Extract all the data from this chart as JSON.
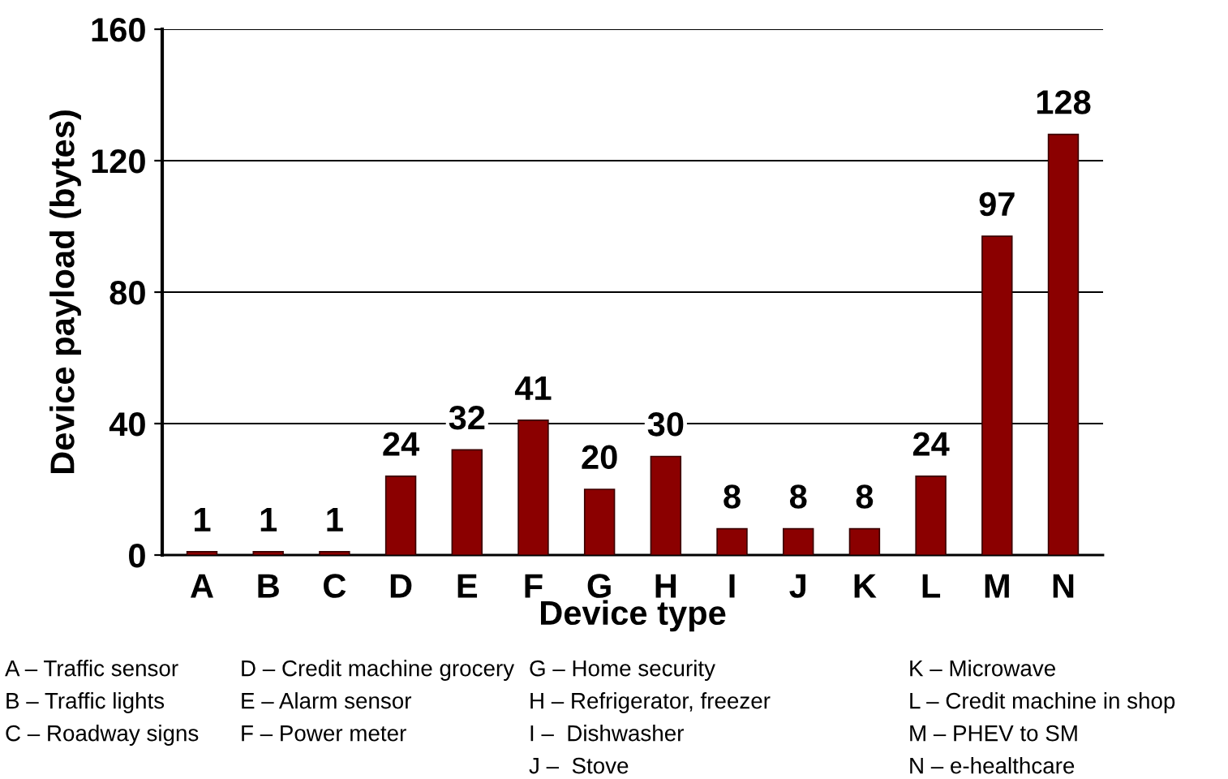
{
  "chart_data": {
    "type": "bar",
    "xlabel": "Device type",
    "ylabel": "Device payload (bytes)",
    "categories": [
      "A",
      "B",
      "C",
      "D",
      "E",
      "F",
      "G",
      "H",
      "I",
      "J",
      "K",
      "L",
      "M",
      "N"
    ],
    "values": [
      1,
      1,
      1,
      24,
      32,
      41,
      20,
      30,
      8,
      8,
      8,
      24,
      97,
      128
    ],
    "color": "#8b0000",
    "ylim": [
      0,
      160
    ],
    "yticks": [
      0,
      40,
      80,
      120,
      160
    ],
    "grid": "y",
    "data_labels": true,
    "annotations": [
      "A – Traffic sensor",
      "B – Traffic lights",
      "C – Roadway signs",
      "D – Credit machine grocery",
      "E – Alarm sensor",
      "F – Power meter",
      "G – Home security",
      "H – Refrigerator, freezer",
      "I –  Dishwasher",
      "J –  Stove",
      "K – Microwave",
      "L – Credit machine in shop",
      "M – PHEV to SM",
      "N – e-healthcare"
    ]
  }
}
